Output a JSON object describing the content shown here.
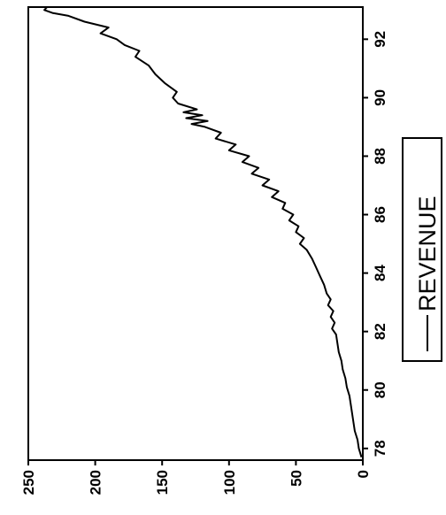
{
  "chart_data": {
    "type": "line",
    "orientation": "rotated-90-ccw",
    "title": "",
    "xlabel": "",
    "ylabel": "",
    "x_ticks": [
      "78",
      "80",
      "82",
      "84",
      "86",
      "88",
      "90",
      "92"
    ],
    "y_ticks": [
      "0",
      "50",
      "100",
      "150",
      "200",
      "250"
    ],
    "xlim": [
      77.6,
      93.1
    ],
    "ylim": [
      0,
      250
    ],
    "grid": false,
    "legend": {
      "placement": "right",
      "entries": [
        "REVENUE"
      ]
    },
    "series": [
      {
        "name": "REVENUE",
        "color": "#000000",
        "points": [
          [
            77.7,
            1
          ],
          [
            78.0,
            3
          ],
          [
            78.3,
            4
          ],
          [
            78.6,
            6
          ],
          [
            78.9,
            7
          ],
          [
            79.2,
            8
          ],
          [
            79.5,
            9
          ],
          [
            79.8,
            10
          ],
          [
            80.1,
            12
          ],
          [
            80.4,
            13
          ],
          [
            80.7,
            15
          ],
          [
            81.0,
            16
          ],
          [
            81.3,
            18
          ],
          [
            81.6,
            19
          ],
          [
            81.9,
            20
          ],
          [
            82.1,
            23
          ],
          [
            82.3,
            21
          ],
          [
            82.5,
            24
          ],
          [
            82.7,
            22
          ],
          [
            82.9,
            26
          ],
          [
            83.1,
            24
          ],
          [
            83.3,
            27
          ],
          [
            83.6,
            29
          ],
          [
            83.9,
            32
          ],
          [
            84.2,
            35
          ],
          [
            84.5,
            38
          ],
          [
            84.8,
            42
          ],
          [
            85.0,
            47
          ],
          [
            85.2,
            44
          ],
          [
            85.4,
            50
          ],
          [
            85.6,
            48
          ],
          [
            85.8,
            55
          ],
          [
            86.0,
            52
          ],
          [
            86.2,
            60
          ],
          [
            86.4,
            58
          ],
          [
            86.6,
            68
          ],
          [
            86.8,
            63
          ],
          [
            87.0,
            75
          ],
          [
            87.2,
            70
          ],
          [
            87.4,
            83
          ],
          [
            87.6,
            78
          ],
          [
            87.8,
            90
          ],
          [
            88.0,
            85
          ],
          [
            88.2,
            100
          ],
          [
            88.4,
            95
          ],
          [
            88.6,
            110
          ],
          [
            88.8,
            106
          ],
          [
            89.0,
            118
          ],
          [
            89.1,
            128
          ],
          [
            89.2,
            116
          ],
          [
            89.3,
            132
          ],
          [
            89.4,
            120
          ],
          [
            89.5,
            134
          ],
          [
            89.6,
            124
          ],
          [
            89.8,
            138
          ],
          [
            90.0,
            142
          ],
          [
            90.2,
            139
          ],
          [
            90.5,
            148
          ],
          [
            90.8,
            155
          ],
          [
            91.1,
            160
          ],
          [
            91.4,
            170
          ],
          [
            91.6,
            167
          ],
          [
            91.8,
            178
          ],
          [
            92.0,
            184
          ],
          [
            92.2,
            196
          ],
          [
            92.4,
            190
          ],
          [
            92.6,
            208
          ],
          [
            92.8,
            220
          ],
          [
            92.9,
            232
          ],
          [
            93.0,
            238
          ],
          [
            93.1,
            236
          ]
        ]
      }
    ]
  }
}
